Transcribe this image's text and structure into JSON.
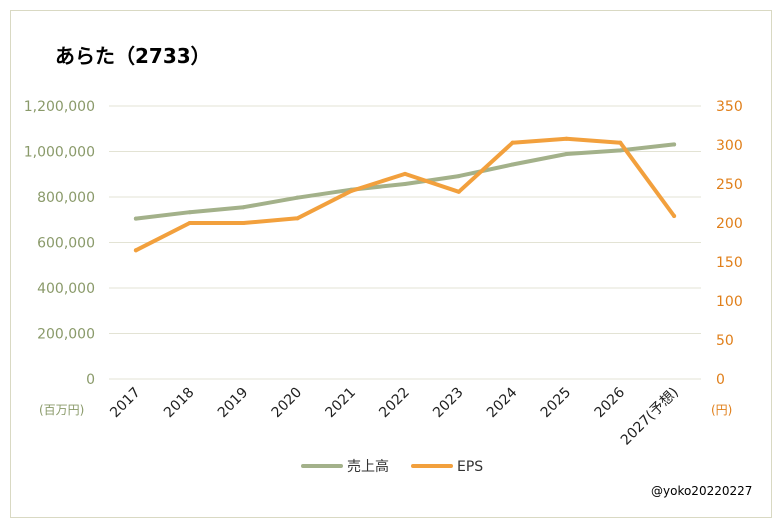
{
  "chart_data": {
    "type": "line",
    "title": "あらた（2733）",
    "categories": [
      "2017",
      "2018",
      "2019",
      "2020",
      "2021",
      "2022",
      "2023",
      "2024",
      "2025",
      "2026",
      "2027(予想)"
    ],
    "series": [
      {
        "name": "売上高",
        "axis": "left",
        "color": "#a3b18a",
        "values": [
          705000,
          733000,
          755000,
          797000,
          832000,
          857000,
          892000,
          943000,
          989000,
          1005000,
          1031000
        ]
      },
      {
        "name": "EPS",
        "axis": "right",
        "color": "#f2a03d",
        "values": [
          165,
          200,
          200,
          206,
          241,
          263,
          240,
          303,
          308,
          303,
          209
        ]
      }
    ],
    "y_left": {
      "min": 0,
      "max": 1200000,
      "ticks": [
        "0",
        "200,000",
        "400,000",
        "600,000",
        "800,000",
        "1,000,000",
        "1,200,000"
      ],
      "unit": "(百万円)"
    },
    "y_right": {
      "min": 0,
      "max": 350,
      "ticks": [
        "0",
        "50",
        "100",
        "150",
        "200",
        "250",
        "300",
        "350"
      ],
      "unit": "(円)"
    },
    "grid": true,
    "legend": "bottom"
  },
  "credit": "@yoko20220227"
}
